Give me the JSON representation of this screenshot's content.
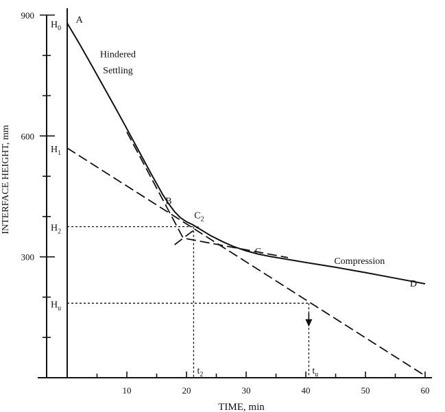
{
  "chart_data": {
    "type": "line",
    "xlabel": "TIME, min",
    "ylabel": "INTERFACE HEIGHT, mm",
    "xlim": [
      0,
      60
    ],
    "ylim": [
      0,
      900
    ],
    "x_ticks": [
      10,
      20,
      30,
      40,
      50,
      60
    ],
    "y_ticks": [
      300,
      600,
      900
    ],
    "y_minor_ticks": [
      100,
      200,
      400,
      500,
      700,
      800
    ],
    "grid": false,
    "series": [
      {
        "style": "solid",
        "x": [
          0,
          2,
          4,
          6,
          8,
          10,
          12,
          14,
          16,
          17,
          18,
          19,
          20,
          21,
          22,
          23,
          24,
          26,
          28,
          30,
          32,
          34,
          36,
          40,
          45,
          50,
          55,
          60
        ],
        "y": [
          880,
          830,
          778,
          725,
          672,
          618,
          563,
          508,
          455,
          432,
          412,
          397,
          387,
          380,
          371,
          362,
          353,
          338,
          325,
          315,
          307,
          301,
          296,
          286,
          274,
          261,
          247,
          233
        ]
      },
      {
        "style": "dashed",
        "x": [
          0,
          60
        ],
        "y": [
          570,
          5
        ]
      },
      {
        "style": "dashed",
        "x": [
          10,
          19.5
        ],
        "y": [
          610,
          345
        ]
      },
      {
        "style": "dashed",
        "x": [
          18,
          22
        ],
        "y": [
          330,
          375
        ]
      },
      {
        "style": "dashed",
        "x": [
          20,
          37
        ],
        "y": [
          345,
          298
        ]
      },
      {
        "style": "dotted",
        "x": [
          0,
          21.2
        ],
        "y": [
          375,
          375
        ]
      },
      {
        "style": "dotted",
        "x": [
          21.2,
          21.2
        ],
        "y": [
          375,
          0
        ]
      },
      {
        "style": "dotted",
        "x": [
          0,
          40.5
        ],
        "y": [
          185,
          185
        ]
      },
      {
        "style": "dotted",
        "x": [
          40.5,
          40.5
        ],
        "y": [
          185,
          0
        ]
      }
    ],
    "point_labels": [
      {
        "text": "A",
        "x": 1,
        "y": 890
      },
      {
        "text": "B",
        "x": 16,
        "y": 440
      },
      {
        "text": "C",
        "x": 31,
        "y": 315
      },
      {
        "text": "D",
        "x": 57,
        "y": 235
      }
    ],
    "annotations": [
      {
        "text": "Hindered",
        "x": 8.5,
        "y": 795
      },
      {
        "text": "Settling",
        "x": 8.5,
        "y": 755
      },
      {
        "text": "Compression",
        "x": 49,
        "y": 282
      }
    ],
    "c2_label": {
      "base": "C",
      "sub": "2",
      "x": 21.3,
      "y": 385
    },
    "h_labels": [
      {
        "base": "H",
        "sub": "0",
        "y": 880
      },
      {
        "base": "H",
        "sub": "1",
        "y": 570
      },
      {
        "base": "H",
        "sub": "2",
        "y": 375
      },
      {
        "base": "H",
        "sub": "u",
        "y": 185
      }
    ],
    "t_labels": [
      {
        "base": "t",
        "sub": "2",
        "x": 21.2
      },
      {
        "base": "t",
        "sub": "u",
        "x": 40.5
      }
    ],
    "arrow": {
      "x": 40.5,
      "y_from": 160,
      "y_to": 130
    }
  }
}
